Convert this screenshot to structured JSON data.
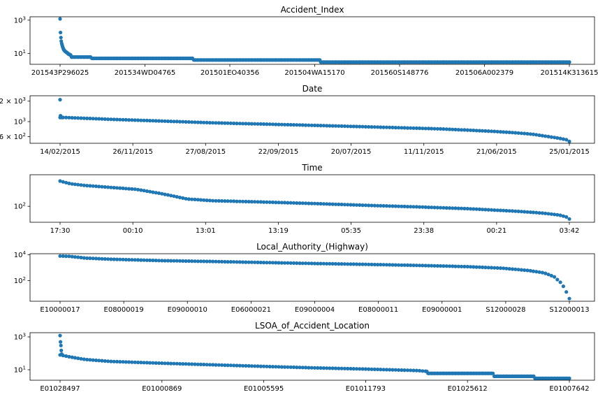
{
  "colors": {
    "marker": "#1f77b4",
    "axes": "#000000",
    "background": "#ffffff"
  },
  "chart_data": [
    {
      "type": "scatter",
      "title": "Accident_Index",
      "yscale": "log",
      "ylim": [
        2.2,
        1600
      ],
      "yticks": [
        {
          "value": 10,
          "base": "10",
          "exp": "1"
        },
        {
          "value": 1000,
          "base": "10",
          "exp": "3"
        }
      ],
      "xticks": [
        "201543P296025",
        "201534WD04765",
        "201501EO40356",
        "201504WA15170",
        "201560S148776",
        "201506A002379",
        "201514K313615"
      ],
      "n_points": 140000,
      "series_desc": "sorted value counts",
      "y": [
        1200,
        180,
        90,
        55,
        40,
        32,
        26,
        22,
        19,
        17,
        15.5,
        14.5,
        13.5,
        13,
        12.5,
        12,
        11.5,
        11,
        10.5,
        10,
        9.5,
        9,
        9,
        8.5,
        8.5,
        8,
        8
      ],
      "steps": [
        [
          0.02,
          8
        ],
        [
          0.06,
          6
        ],
        [
          0.26,
          5
        ],
        [
          0.51,
          4
        ],
        [
          0.75,
          3
        ],
        [
          1.0,
          3
        ]
      ]
    },
    {
      "type": "scatter",
      "title": "Date",
      "yscale": "log",
      "ylim": [
        480,
        2400
      ],
      "yticks": [
        {
          "value": 600,
          "base": "6 × 10",
          "exp": "2"
        },
        {
          "value": 1000,
          "base": "10",
          "exp": "3"
        },
        {
          "value": 2000,
          "base": "2 × 10",
          "exp": "3"
        }
      ],
      "xticks": [
        "14/02/2015",
        "26/11/2015",
        "27/08/2015",
        "22/09/2015",
        "20/07/2015",
        "11/11/2015",
        "21/06/2015",
        "25/01/2015"
      ],
      "n_points": 365,
      "y": [
        2100,
        1220,
        1190,
        1170,
        1150
      ],
      "curve": [
        [
          0.01,
          1150
        ],
        [
          0.1,
          1080
        ],
        [
          0.2,
          1020
        ],
        [
          0.3,
          960
        ],
        [
          0.4,
          920
        ],
        [
          0.5,
          880
        ],
        [
          0.6,
          840
        ],
        [
          0.7,
          800
        ],
        [
          0.75,
          780
        ],
        [
          0.8,
          750
        ],
        [
          0.85,
          720
        ],
        [
          0.9,
          680
        ],
        [
          0.93,
          650
        ],
        [
          0.96,
          600
        ],
        [
          0.98,
          570
        ],
        [
          0.995,
          540
        ],
        [
          1.0,
          510
        ]
      ]
    },
    {
      "type": "scatter",
      "title": "Time",
      "yscale": "log",
      "ylim": [
        22,
        2000
      ],
      "yticks": [
        {
          "value": 100,
          "base": "10",
          "exp": "2"
        }
      ],
      "xticks": [
        "17:30",
        "00:10",
        "13:01",
        "13:19",
        "05:35",
        "23:38",
        "00:21",
        "03:42"
      ],
      "n_points": 1439,
      "curve": [
        [
          0,
          1100
        ],
        [
          0.02,
          850
        ],
        [
          0.05,
          720
        ],
        [
          0.1,
          600
        ],
        [
          0.15,
          500
        ],
        [
          0.2,
          330
        ],
        [
          0.25,
          200
        ],
        [
          0.3,
          170
        ],
        [
          0.4,
          150
        ],
        [
          0.5,
          130
        ],
        [
          0.6,
          110
        ],
        [
          0.7,
          95
        ],
        [
          0.8,
          80
        ],
        [
          0.9,
          62
        ],
        [
          0.95,
          52
        ],
        [
          0.98,
          44
        ],
        [
          0.995,
          36
        ],
        [
          1.0,
          30
        ]
      ]
    },
    {
      "type": "scatter",
      "title": "Local_Authority_(Highway)",
      "yscale": "log",
      "ylim": [
        2.5,
        12000
      ],
      "yticks": [
        {
          "value": 100,
          "base": "10",
          "exp": "2"
        },
        {
          "value": 10000,
          "base": "10",
          "exp": "4"
        }
      ],
      "xticks": [
        "E10000017",
        "E08000019",
        "E09000010",
        "E06000021",
        "E09000004",
        "E08000011",
        "E09000001",
        "S12000028",
        "S12000013"
      ],
      "n_points": 207,
      "curve": [
        [
          0,
          8000
        ],
        [
          0.02,
          7500
        ],
        [
          0.05,
          5500
        ],
        [
          0.1,
          4500
        ],
        [
          0.2,
          3500
        ],
        [
          0.3,
          3000
        ],
        [
          0.4,
          2500
        ],
        [
          0.5,
          2100
        ],
        [
          0.6,
          1800
        ],
        [
          0.7,
          1500
        ],
        [
          0.8,
          1200
        ],
        [
          0.87,
          900
        ],
        [
          0.92,
          600
        ],
        [
          0.95,
          400
        ],
        [
          0.97,
          200
        ],
        [
          0.985,
          60
        ],
        [
          0.992,
          20
        ],
        [
          1.0,
          4
        ]
      ]
    },
    {
      "type": "scatter",
      "title": "LSOA_of_Accident_Location",
      "yscale": "log",
      "ylim": [
        2.3,
        1800
      ],
      "yticks": [
        {
          "value": 10,
          "base": "10",
          "exp": "1"
        },
        {
          "value": 1000,
          "base": "10",
          "exp": "3"
        }
      ],
      "xticks": [
        "E01028497",
        "E01000869",
        "E01005595",
        "E01011793",
        "E01025612",
        "E01007642"
      ],
      "n_points": 32000,
      "y": [
        1200,
        500,
        300,
        150,
        90
      ],
      "curve": [
        [
          0,
          80
        ],
        [
          0.02,
          60
        ],
        [
          0.05,
          42
        ],
        [
          0.1,
          32
        ],
        [
          0.2,
          25
        ],
        [
          0.3,
          20
        ],
        [
          0.4,
          16
        ],
        [
          0.5,
          13
        ],
        [
          0.6,
          11
        ],
        [
          0.7,
          9
        ],
        [
          0.72,
          8
        ],
        [
          0.8,
          7
        ],
        [
          0.83,
          6
        ],
        [
          0.85,
          5
        ],
        [
          0.92,
          5
        ],
        [
          0.93,
          4
        ],
        [
          0.97,
          4
        ],
        [
          1.0,
          3
        ]
      ],
      "steps": [
        [
          0.72,
          8
        ],
        [
          0.85,
          6
        ],
        [
          0.93,
          4
        ],
        [
          0.97,
          3
        ],
        [
          1.0,
          3
        ]
      ]
    }
  ]
}
